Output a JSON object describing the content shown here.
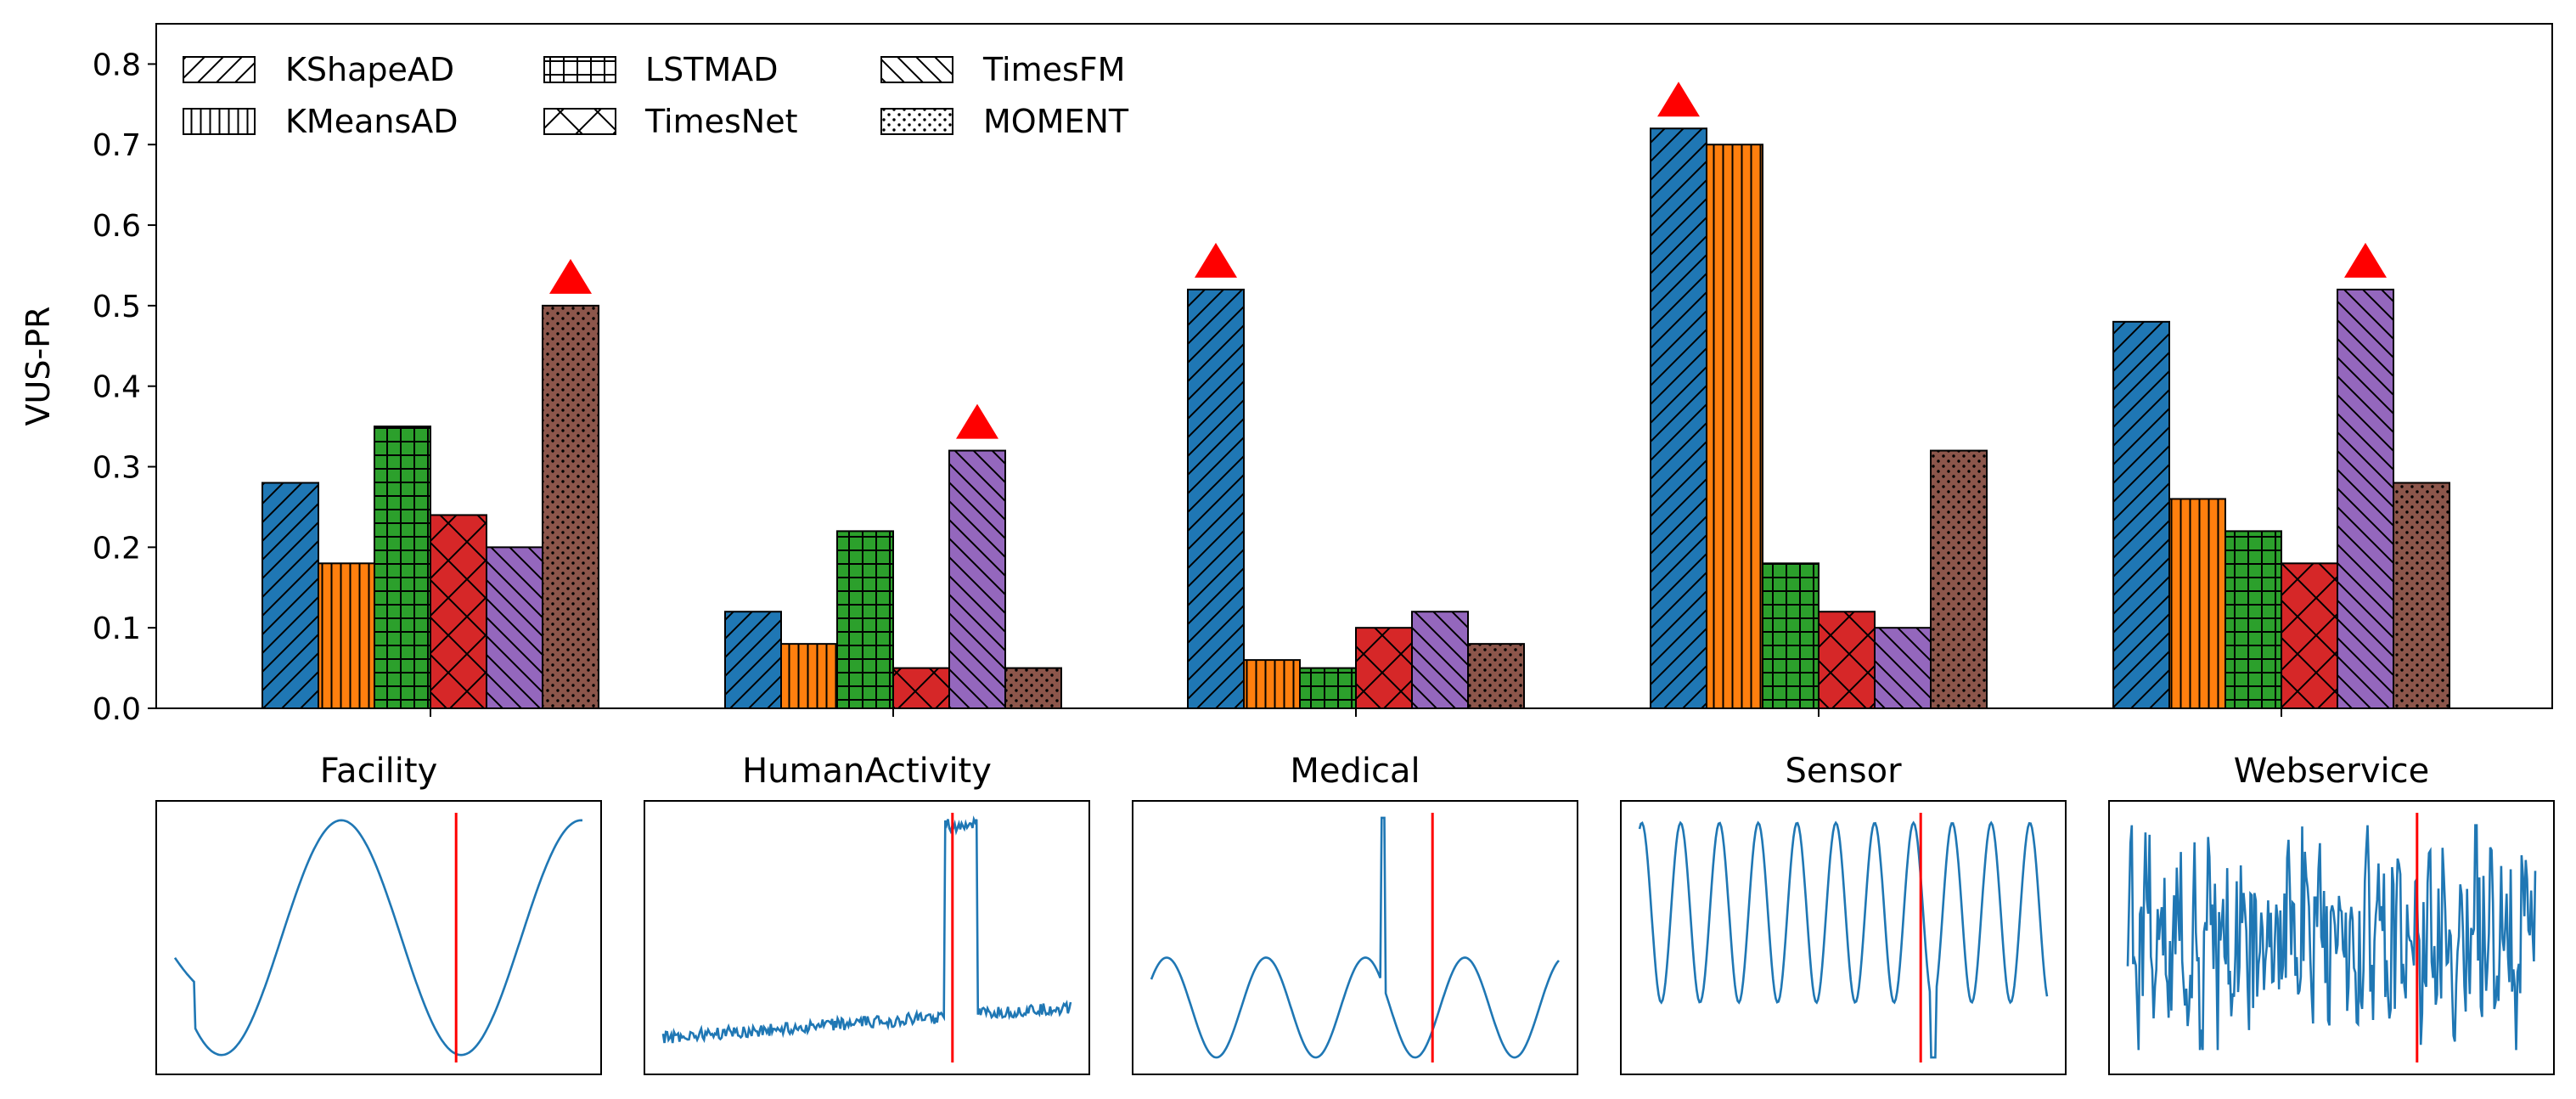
{
  "chart_data": [
    {
      "type": "bar",
      "title": "",
      "xlabel": "",
      "ylabel": "VUS-PR",
      "ylim": [
        0,
        0.85
      ],
      "yticks": [
        "0.0",
        "0.1",
        "0.2",
        "0.3",
        "0.4",
        "0.5",
        "0.6",
        "0.7",
        "0.8"
      ],
      "categories": [
        "Facility",
        "HumanActivity",
        "Medical",
        "Sensor",
        "Webservice"
      ],
      "legend_position": "top-left",
      "grid": false,
      "best_marker": {
        "shape": "triangle",
        "color": "#ff0000"
      },
      "series": [
        {
          "name": "KShapeAD",
          "color": "#1f77b4",
          "hatch": "diagonal-up",
          "values": [
            0.28,
            0.12,
            0.52,
            0.72,
            0.48
          ]
        },
        {
          "name": "KMeansAD",
          "color": "#ff7f0e",
          "hatch": "vertical",
          "values": [
            0.18,
            0.08,
            0.06,
            0.7,
            0.26
          ]
        },
        {
          "name": "LSTMAD",
          "color": "#2ca02c",
          "hatch": "grid",
          "values": [
            0.35,
            0.22,
            0.05,
            0.18,
            0.22
          ]
        },
        {
          "name": "TimesNet",
          "color": "#d62728",
          "hatch": "crosshatch",
          "values": [
            0.24,
            0.05,
            0.1,
            0.12,
            0.18
          ]
        },
        {
          "name": "TimesFM",
          "color": "#9467bd",
          "hatch": "diagonal-down",
          "values": [
            0.2,
            0.32,
            0.12,
            0.1,
            0.52
          ]
        },
        {
          "name": "MOMENT",
          "color": "#8c564b",
          "hatch": "dots",
          "values": [
            0.5,
            0.05,
            0.08,
            0.32,
            0.28
          ]
        }
      ],
      "best_indices": [
        5,
        4,
        0,
        0,
        4
      ]
    },
    {
      "type": "line",
      "title": "Facility",
      "pattern": "slow-sine",
      "line_color": "#1f77b4",
      "anomaly_color": "#ff0000",
      "anomaly_position": 0.69
    },
    {
      "type": "line",
      "title": "HumanActivity",
      "pattern": "step-pulse",
      "line_color": "#1f77b4",
      "anomaly_color": "#ff0000",
      "anomaly_position": 0.71
    },
    {
      "type": "line",
      "title": "Medical",
      "pattern": "sine-with-spike",
      "line_color": "#1f77b4",
      "anomaly_color": "#ff0000",
      "anomaly_position": 0.69
    },
    {
      "type": "line",
      "title": "Sensor",
      "pattern": "fast-sine-with-dip",
      "line_color": "#1f77b4",
      "anomaly_color": "#ff0000",
      "anomaly_position": 0.69
    },
    {
      "type": "line",
      "title": "Webservice",
      "pattern": "noisy",
      "line_color": "#1f77b4",
      "anomaly_color": "#ff0000",
      "anomaly_position": 0.71
    }
  ]
}
